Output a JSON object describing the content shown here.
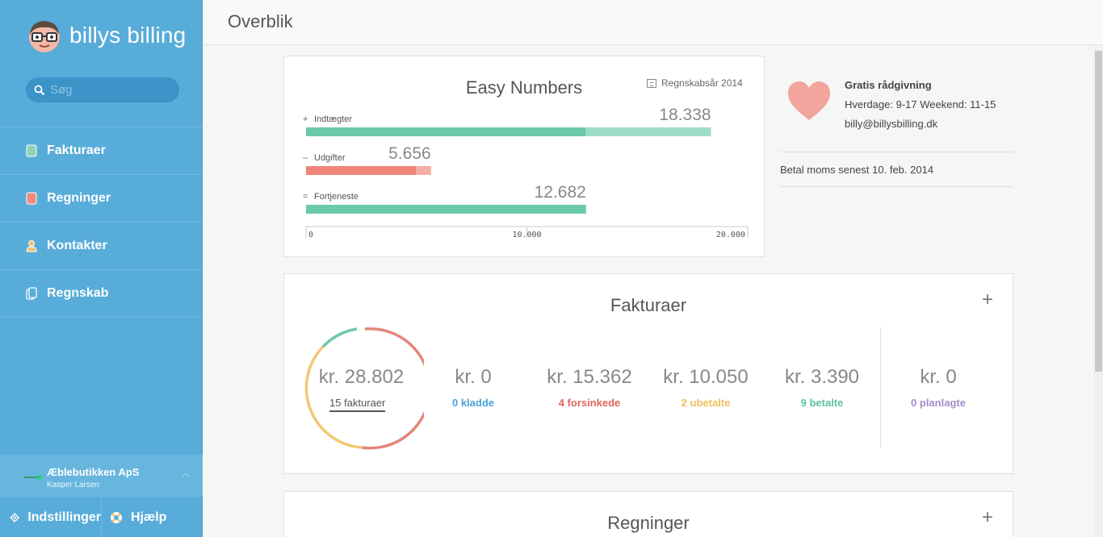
{
  "app": {
    "logo_text": "billys billing",
    "search_placeholder": "Søg"
  },
  "sidebar": {
    "items": [
      {
        "label": "Fakturaer",
        "icon": "invoice-icon",
        "color": "#8fd3b3"
      },
      {
        "label": "Regninger",
        "icon": "bill-icon",
        "color": "#f08a7e"
      },
      {
        "label": "Kontakter",
        "icon": "contact-icon",
        "color": "#f4c06a"
      },
      {
        "label": "Regnskab",
        "icon": "accounting-icon",
        "color": "#ffffff"
      }
    ],
    "company": {
      "name": "Æblebutikken ApS",
      "user": "Kasper Larsen"
    },
    "footer": {
      "settings": "Indstillinger",
      "help": "Hjælp"
    }
  },
  "header": {
    "title": "Overblik"
  },
  "easy_numbers": {
    "title": "Easy Numbers",
    "fiscal_year": "Regnskabsår 2014"
  },
  "chart_data": {
    "type": "bar",
    "orientation": "horizontal",
    "categories": [
      "Indtægter",
      "Udgifter",
      "Fortjeneste"
    ],
    "symbols": [
      "+",
      "–",
      "="
    ],
    "values": [
      18338,
      5656,
      12682
    ],
    "value_labels": [
      "18.338",
      "5.656",
      "12.682"
    ],
    "colors": [
      "#6cc9a8",
      "#f08479",
      "#6cc9a8"
    ],
    "x_ticks": [
      "0",
      "10.000",
      "20.000"
    ],
    "xlim": [
      0,
      20000
    ]
  },
  "support": {
    "title": "Gratis rådgivning",
    "hours": "Hverdage: 9-17 Weekend: 11-15",
    "email": "billy@billysbilling.dk",
    "vat_notice": "Betal moms senest 10. feb. 2014"
  },
  "invoices": {
    "title": "Fakturaer",
    "total": {
      "amount": "kr. 28.802",
      "count": "15 fakturaer"
    },
    "stats": [
      {
        "amount": "kr. 0",
        "label": "0 kladde",
        "color": "#4aa3d8"
      },
      {
        "amount": "kr. 15.362",
        "label": "4 forsinkede",
        "color": "#e0665b"
      },
      {
        "amount": "kr. 10.050",
        "label": "2 ubetalte",
        "color": "#f0c15a"
      },
      {
        "amount": "kr. 3.390",
        "label": "9 betalte",
        "color": "#5cc29e"
      },
      {
        "amount": "kr. 0",
        "label": "0 planlagte",
        "color": "#a48bc8"
      }
    ]
  },
  "bills": {
    "title": "Regninger"
  }
}
